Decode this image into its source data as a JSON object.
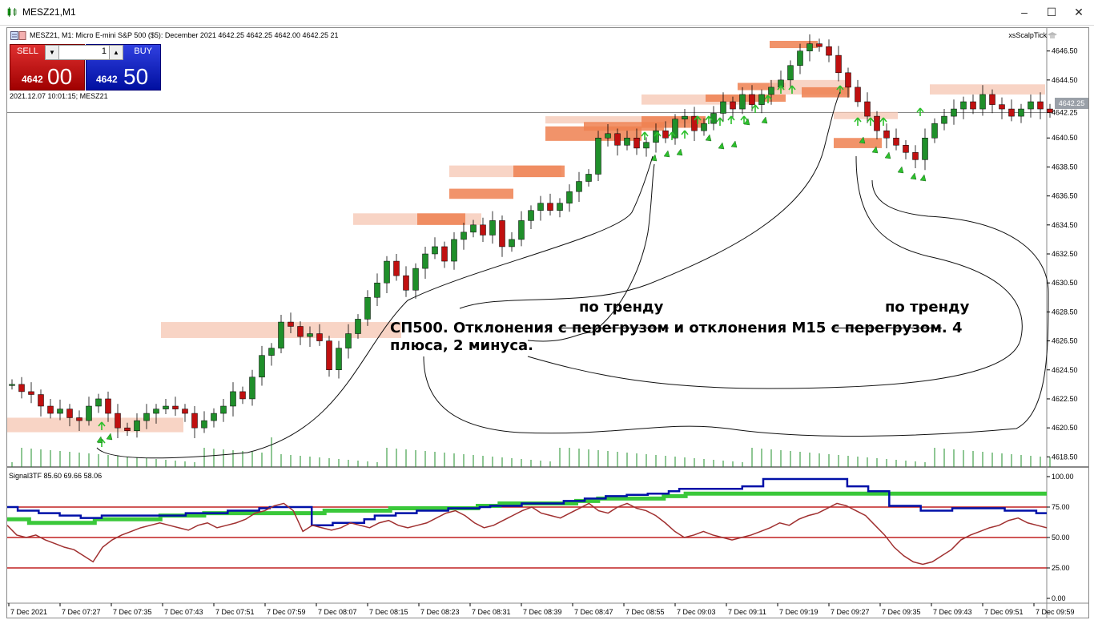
{
  "window": {
    "title": "MESZ21,M1",
    "buttons": [
      "–",
      "☐",
      "✕"
    ]
  },
  "chart": {
    "info": "MESZ21, M1:  Micro E-mini S&P 500 ($5): December 2021  4642.25 4642.25 4642.00 4642.25  21",
    "indicator_name": "xsScalpTick",
    "datetime": "2021.12.07 10:01:15; MESZ21",
    "current_price": "4642.25",
    "subwindow_label": "Signal3TF 85.60 69.66 58.06"
  },
  "trade_panel": {
    "sell_label": "SELL",
    "buy_label": "BUY",
    "lot": "1",
    "sell_price_small": "4642",
    "sell_price_big": "00",
    "buy_price_small": "4642",
    "buy_price_big": "50"
  },
  "annotations": {
    "main_line1_a": "СП500. Отклонения ",
    "main_line1_strike1": "с перегрузом",
    "main_line1_b": " и отклонения М15 ",
    "main_line1_strike2": "с перегрузом",
    "main_line1_c": ". 4",
    "main_line2": "плюса, 2 минуса.",
    "trend_label_1": "по тренду",
    "trend_label_2": "по тренду"
  },
  "colors": {
    "bull": "#1f8f2a",
    "bear": "#c01010",
    "zone_light": "#f6c6b2",
    "zone_dark": "#ee8050",
    "signal_green": "#3ac83a",
    "signal_blue": "#0010a8",
    "signal_brown": "#a03030",
    "level_red": "#c02020",
    "arrow_green": "#2cc02c"
  },
  "chart_data": {
    "type": "candlestick",
    "price_axis": [
      "4646.50",
      "4644.50",
      "4642.25",
      "4640.50",
      "4638.50",
      "4636.50",
      "4634.50",
      "4632.50",
      "4630.50",
      "4628.50",
      "4626.50",
      "4624.50",
      "4622.50",
      "4620.50",
      "4618.50"
    ],
    "ylim": [
      4617.8,
      4647.2
    ],
    "time_axis": [
      "7 Dec 2021",
      "7 Dec 07:27",
      "7 Dec 07:35",
      "7 Dec 07:43",
      "7 Dec 07:51",
      "7 Dec 07:59",
      "7 Dec 08:07",
      "7 Dec 08:15",
      "7 Dec 08:23",
      "7 Dec 08:31",
      "7 Dec 08:39",
      "7 Dec 08:47",
      "7 Dec 08:55",
      "7 Dec 09:03",
      "7 Dec 09:11",
      "7 Dec 09:19",
      "7 Dec 09:27",
      "7 Dec 09:35",
      "7 Dec 09:43",
      "7 Dec 09:51",
      "7 Dec 09:59"
    ],
    "close_path": [
      4623.5,
      4623.0,
      4622.8,
      4622.0,
      4621.5,
      4621.8,
      4621.2,
      4621.0,
      4622.0,
      4622.5,
      4621.5,
      4620.5,
      4620.3,
      4621.0,
      4621.5,
      4621.8,
      4622.0,
      4621.8,
      4621.5,
      4620.5,
      4621.0,
      4621.5,
      4622.0,
      4623.0,
      4622.5,
      4624.0,
      4625.5,
      4626.0,
      4627.8,
      4627.5,
      4626.8,
      4627.0,
      4626.5,
      4624.5,
      4626.0,
      4627.0,
      4628.0,
      4629.5,
      4630.5,
      4632.0,
      4631.0,
      4630.0,
      4631.5,
      4632.5,
      4633.0,
      4632.0,
      4633.5,
      4634.0,
      4634.5,
      4633.8,
      4634.8,
      4633.0,
      4633.5,
      4634.8,
      4635.5,
      4636.0,
      4635.5,
      4636.0,
      4636.8,
      4637.5,
      4638.0,
      4640.5,
      4640.8,
      4640.0,
      4640.5,
      4639.8,
      4640.2,
      4641.0,
      4640.5,
      4641.8,
      4642.0,
      4641.0,
      4641.5,
      4642.2,
      4643.0,
      4642.5,
      4643.5,
      4642.8,
      4643.5,
      4644.0,
      4644.5,
      4645.5,
      4646.5,
      4647.0,
      4646.8,
      4646.2,
      4645.0,
      4644.0,
      4643.0,
      4642.0,
      4641.0,
      4640.5,
      4640.0,
      4639.5,
      4639.0,
      4640.5,
      4641.5,
      4642.0,
      4642.5,
      4643.0,
      4642.5,
      4643.5,
      4642.8,
      4642.5,
      4642.0,
      4642.5,
      4643.0,
      4642.5,
      4642.25
    ],
    "signal_axis": [
      "100.00",
      "75.00",
      "50.00",
      "25.00",
      "0.00"
    ],
    "signal_levels": [
      75,
      50,
      25
    ],
    "series": [
      {
        "name": "Signal3TF 1",
        "values": [
          65,
          65,
          62,
          62,
          62,
          62,
          62,
          62,
          65,
          65,
          65,
          65,
          65,
          65,
          68,
          68,
          68,
          68,
          70,
          70,
          70,
          70,
          70,
          70,
          70,
          70,
          70,
          70,
          70,
          72,
          72,
          72,
          72,
          72,
          72,
          74,
          74,
          74,
          74,
          74,
          74,
          74,
          74,
          76,
          76,
          78,
          78,
          78,
          78,
          78,
          78,
          78,
          80,
          80,
          82,
          82,
          82,
          82,
          82,
          82,
          84,
          84,
          86,
          86,
          86,
          86,
          86,
          86,
          86,
          86,
          86,
          86,
          86,
          86,
          86,
          86,
          86,
          86,
          86,
          86,
          86,
          86,
          86,
          86,
          86,
          86,
          86,
          86,
          86,
          86,
          86,
          86,
          86,
          86,
          86,
          86
        ]
      },
      {
        "name": "Signal3TF 2",
        "values": [
          75,
          72,
          72,
          70,
          70,
          68,
          68,
          66,
          66,
          68,
          68,
          68,
          68,
          68,
          68,
          68,
          68,
          70,
          70,
          70,
          70,
          72,
          72,
          72,
          74,
          75,
          75,
          75,
          75,
          60,
          60,
          62,
          62,
          62,
          65,
          68,
          68,
          70,
          70,
          72,
          72,
          72,
          74,
          74,
          74,
          75,
          76,
          76,
          76,
          78,
          78,
          78,
          78,
          80,
          80,
          82,
          82,
          84,
          84,
          85,
          85,
          86,
          86,
          88,
          90,
          90,
          90,
          90,
          90,
          90,
          92,
          92,
          98,
          98,
          98,
          98,
          98,
          98,
          98,
          98,
          92,
          92,
          88,
          88,
          76,
          76,
          76,
          72,
          72,
          72,
          74,
          74,
          74,
          74,
          74,
          72,
          72,
          72,
          70,
          70
        ]
      },
      {
        "name": "Signal3TF 3",
        "values": [
          60,
          52,
          50,
          52,
          48,
          45,
          42,
          40,
          35,
          30,
          42,
          48,
          52,
          55,
          58,
          60,
          62,
          60,
          58,
          56,
          60,
          62,
          58,
          60,
          62,
          65,
          70,
          72,
          76,
          78,
          72,
          55,
          60,
          58,
          56,
          58,
          62,
          60,
          58,
          62,
          64,
          60,
          58,
          60,
          62,
          66,
          70,
          72,
          68,
          62,
          58,
          60,
          64,
          68,
          72,
          75,
          70,
          68,
          66,
          70,
          74,
          78,
          72,
          70,
          75,
          78,
          74,
          72,
          68,
          62,
          55,
          50,
          52,
          55,
          52,
          50,
          48,
          50,
          52,
          55,
          58,
          62,
          60,
          65,
          68,
          70,
          74,
          78,
          76,
          72,
          68,
          60,
          52,
          42,
          35,
          30,
          28,
          30,
          35,
          40,
          48,
          52,
          55,
          58,
          60,
          64,
          66,
          62,
          60,
          58
        ]
      }
    ]
  }
}
